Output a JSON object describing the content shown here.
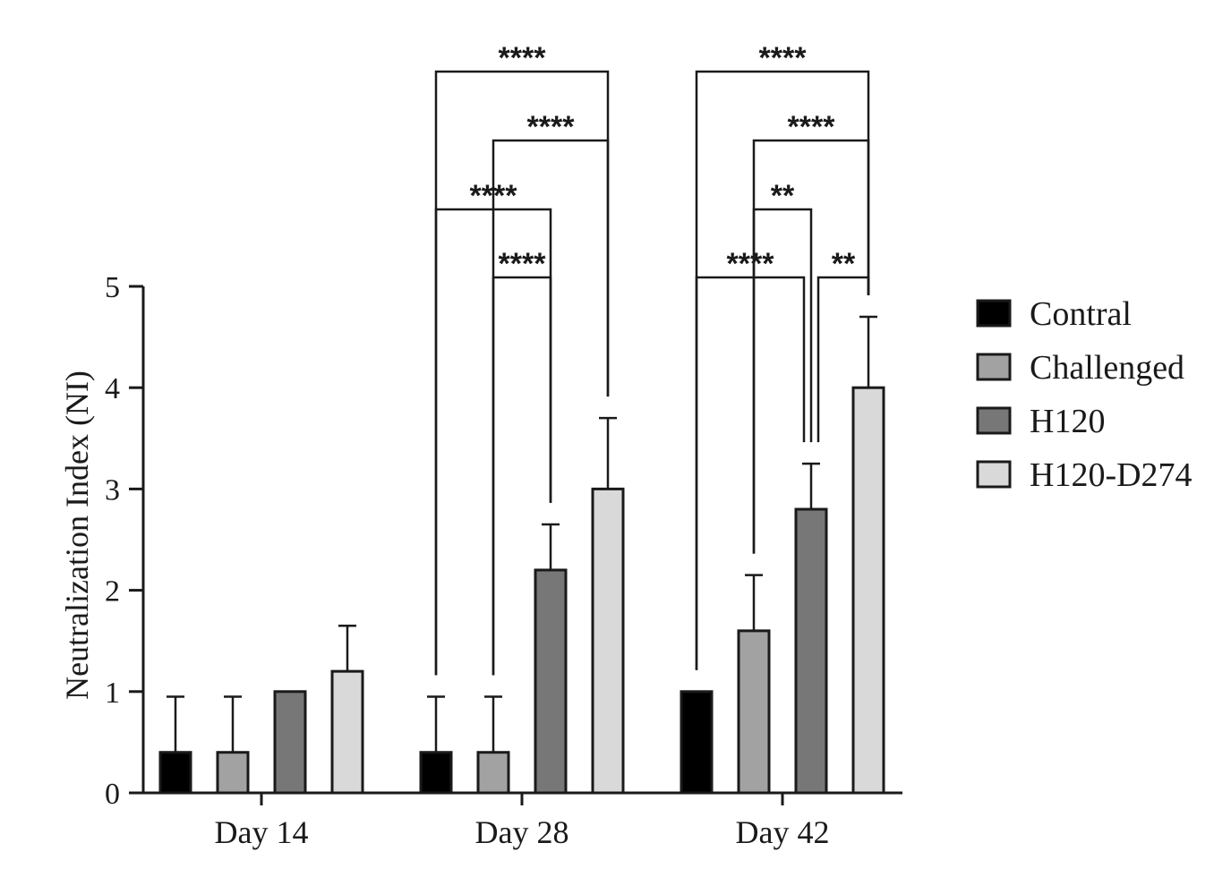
{
  "chart_data": {
    "type": "bar",
    "title": "",
    "xlabel": "",
    "ylabel": "Neutralization Index (NI)",
    "ylim": [
      0,
      5
    ],
    "yticks": [
      0,
      1,
      2,
      3,
      4,
      5
    ],
    "categories": [
      "Day 14",
      "Day 28",
      "Day 42"
    ],
    "grid": false,
    "legend_position": "right",
    "series": [
      {
        "name": "Contral",
        "color": "#000000",
        "values": [
          0.4,
          0.4,
          1.0
        ],
        "errors": [
          0.55,
          0.55,
          0.0
        ]
      },
      {
        "name": "Challenged",
        "color": "#a2a2a2",
        "values": [
          0.4,
          0.4,
          1.6
        ],
        "errors": [
          0.55,
          0.55,
          0.55
        ]
      },
      {
        "name": "H120",
        "color": "#777777",
        "values": [
          1.0,
          2.2,
          2.8
        ],
        "errors": [
          0.0,
          0.45,
          0.45
        ]
      },
      {
        "name": "H120-D274",
        "color": "#d9d9d9",
        "values": [
          1.2,
          3.0,
          4.0
        ],
        "errors": [
          0.45,
          0.7,
          0.7
        ]
      }
    ],
    "significance": [
      {
        "category": 1,
        "from": 0,
        "to": 3,
        "label": "****",
        "level": 4
      },
      {
        "category": 1,
        "from": 1,
        "to": 3,
        "label": "****",
        "level": 3
      },
      {
        "category": 1,
        "from": 0,
        "to": 2,
        "label": "****",
        "level": 2
      },
      {
        "category": 1,
        "from": 1,
        "to": 2,
        "label": "****",
        "level": 1
      },
      {
        "category": 2,
        "from": 0,
        "to": 3,
        "label": "****",
        "level": 4
      },
      {
        "category": 2,
        "from": 1,
        "to": 3,
        "label": "****",
        "level": 3
      },
      {
        "category": 2,
        "from": 1,
        "to": 2,
        "label": "**",
        "level": 2
      },
      {
        "category": 2,
        "from": 0,
        "to": 2,
        "label": "****",
        "level": 1,
        "side": "left"
      },
      {
        "category": 2,
        "from": 2,
        "to": 3,
        "label": "**",
        "level": 1,
        "side": "right"
      }
    ]
  }
}
